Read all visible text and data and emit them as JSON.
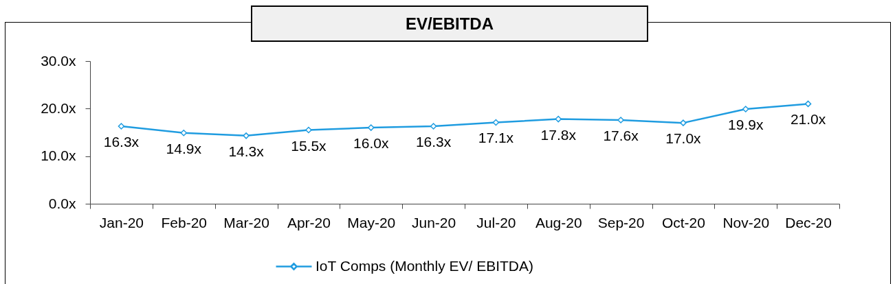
{
  "chart_data": {
    "type": "line",
    "title": "EV/EBITDA",
    "categories": [
      "Jan-20",
      "Feb-20",
      "Mar-20",
      "Apr-20",
      "May-20",
      "Jun-20",
      "Jul-20",
      "Aug-20",
      "Sep-20",
      "Oct-20",
      "Nov-20",
      "Dec-20"
    ],
    "series": [
      {
        "name": "IoT Comps (Monthly EV/ EBITDA)",
        "color": "#1f9ce0",
        "values": [
          16.3,
          14.9,
          14.3,
          15.5,
          16.0,
          16.3,
          17.1,
          17.8,
          17.6,
          17.0,
          19.9,
          21.0
        ],
        "value_labels": [
          "16.3x",
          "14.9x",
          "14.3x",
          "15.5x",
          "16.0x",
          "16.3x",
          "17.1x",
          "17.8x",
          "17.6x",
          "17.0x",
          "19.9x",
          "21.0x"
        ]
      }
    ],
    "ylim": [
      0,
      30
    ],
    "yticks": [
      {
        "value": 0,
        "label": "0.0x"
      },
      {
        "value": 10,
        "label": "10.0x"
      },
      {
        "value": 20,
        "label": "20.0x"
      },
      {
        "value": 30,
        "label": "30.0x"
      }
    ],
    "grid": false,
    "legend": "bottom",
    "marker": "diamond",
    "line_style": "solid"
  }
}
